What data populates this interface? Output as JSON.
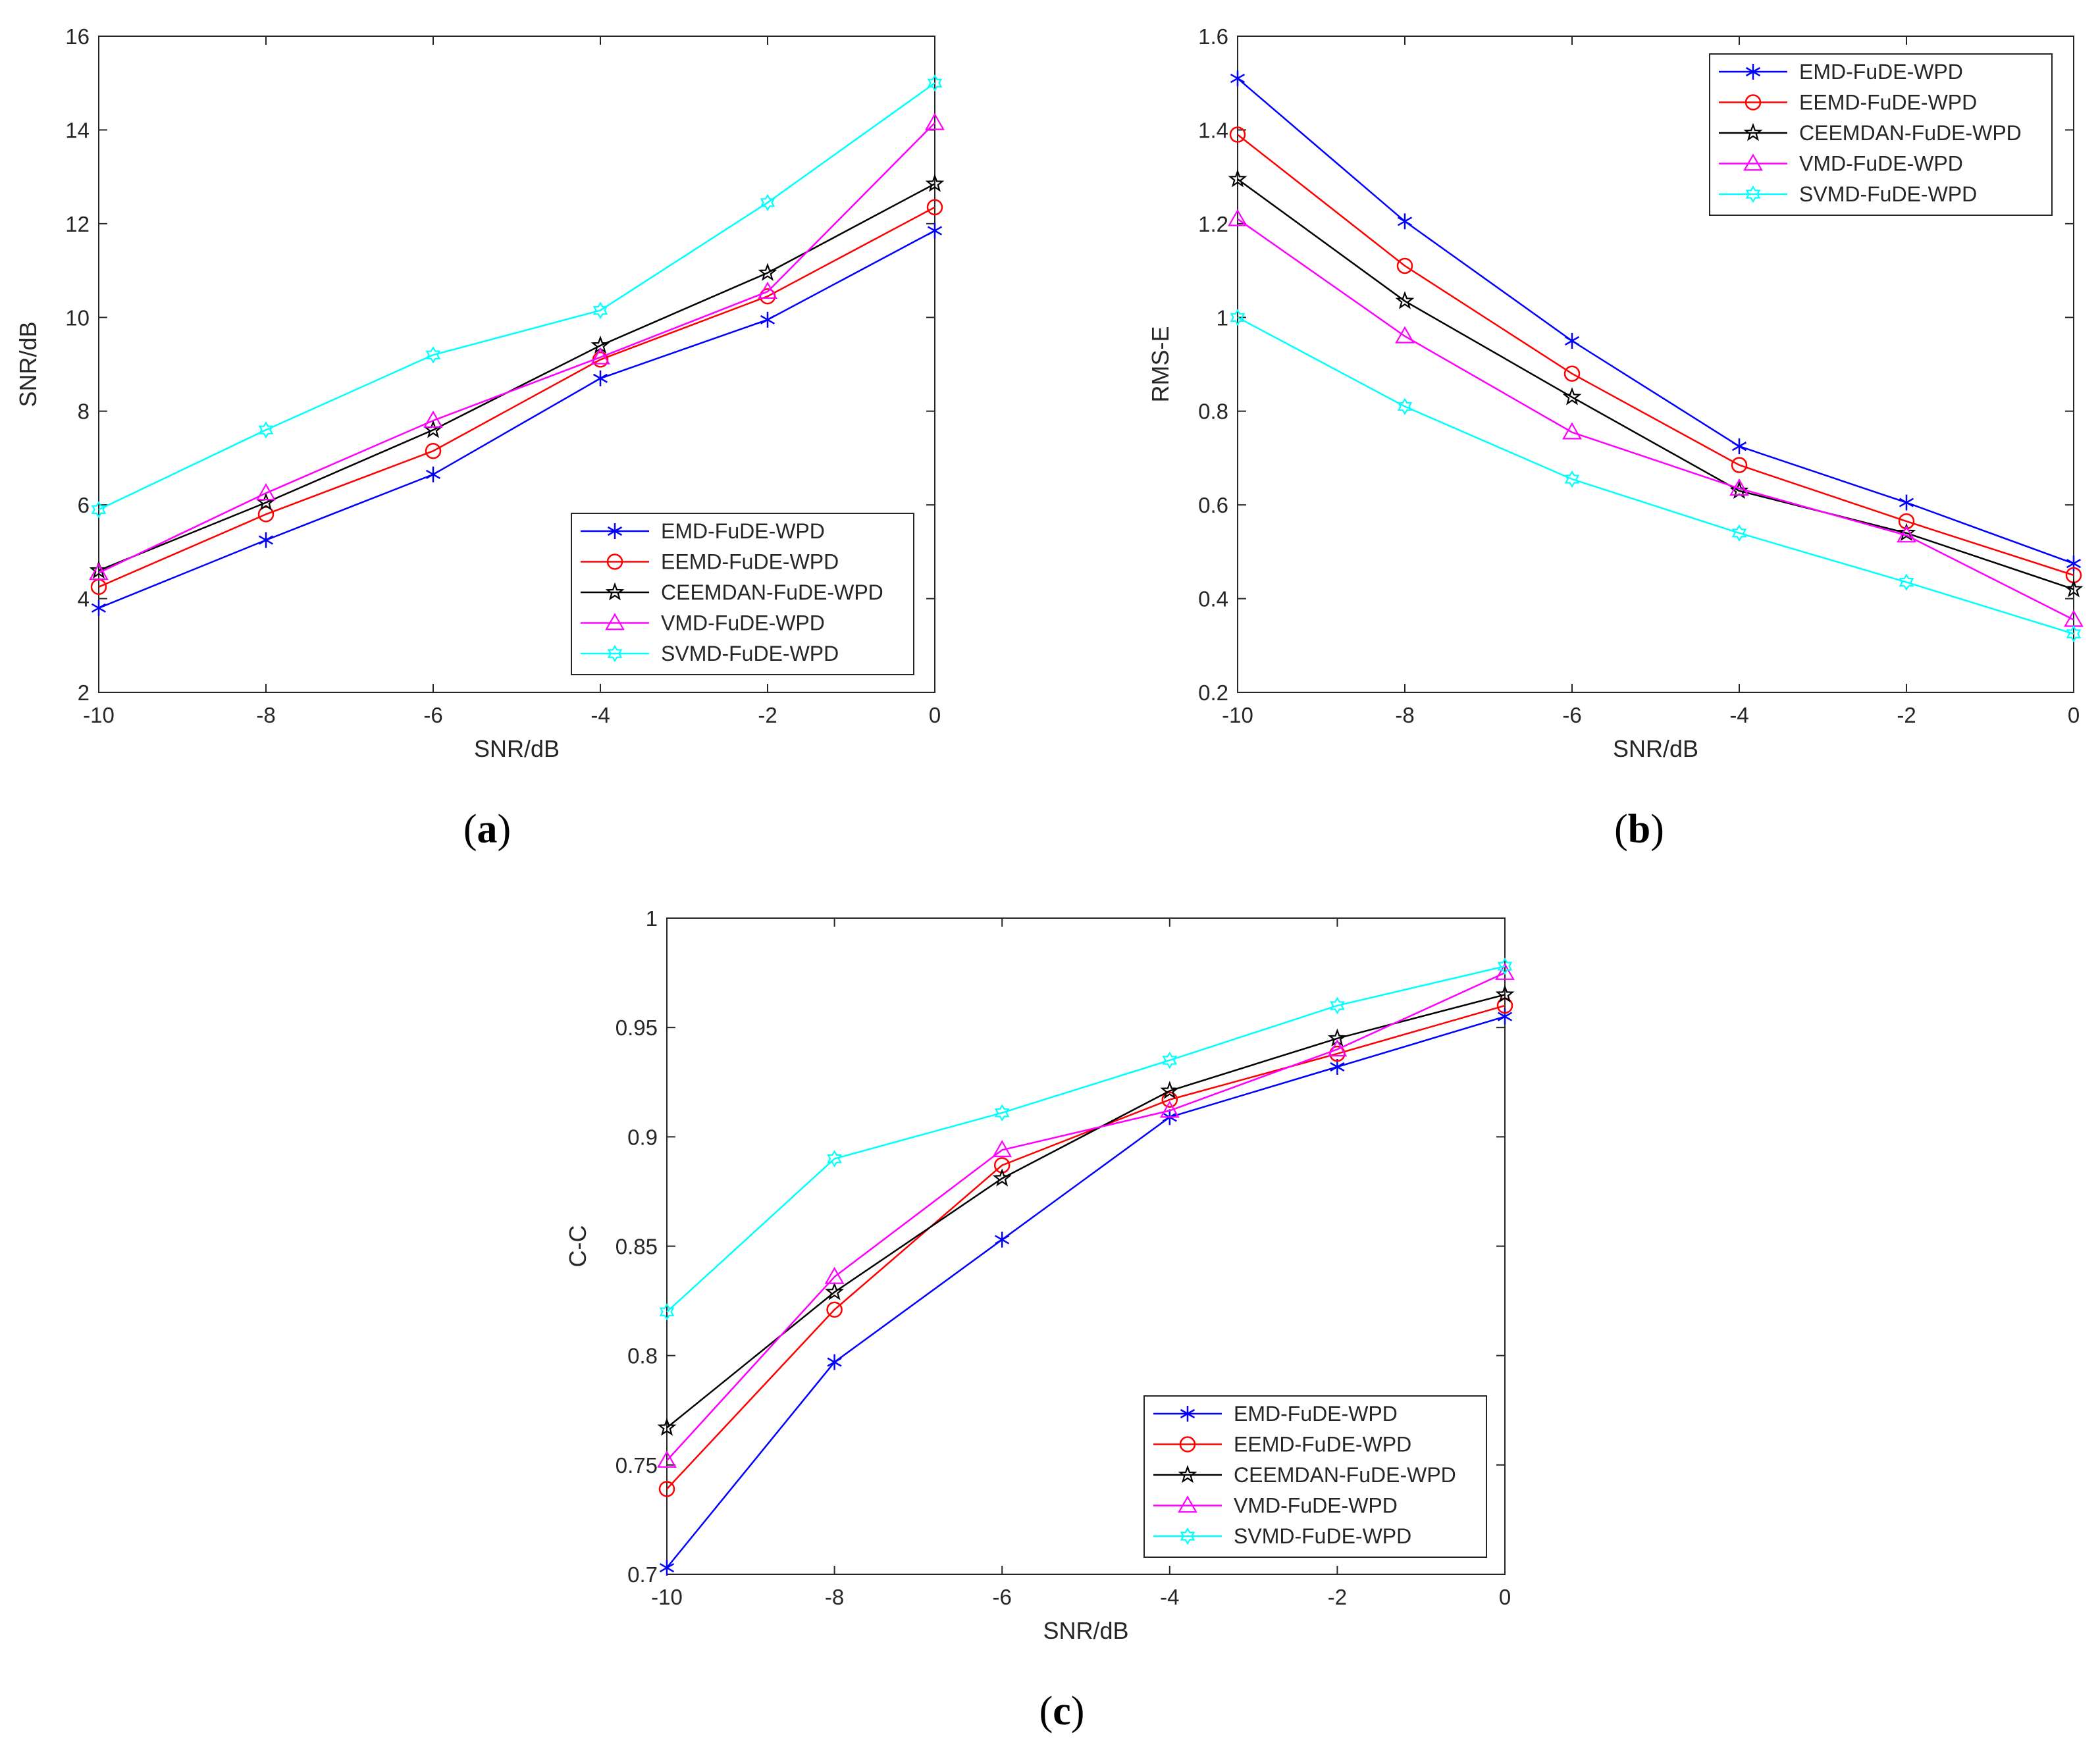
{
  "figure": {
    "series_colors": {
      "EMD-FuDE-WPD": "#0000FF",
      "EEMD-FuDE-WPD": "#FF0000",
      "CEEMDAN-FuDE-WPD": "#000000",
      "VMD-FuDE-WPD": "#FF00FF",
      "SVMD-FuDE-WPD": "#00FFFF"
    },
    "series_markers": {
      "EMD-FuDE-WPD": "asterisk",
      "EEMD-FuDE-WPD": "circle",
      "CEEMDAN-FuDE-WPD": "pentagram",
      "VMD-FuDE-WPD": "triangle",
      "SVMD-FuDE-WPD": "hexagram"
    }
  },
  "chart_data": [
    {
      "id": "a",
      "caption_label": "a",
      "type": "line",
      "title": "",
      "xlabel": "SNR/dB",
      "ylabel": "SNR/dB",
      "x": [
        -10,
        -8,
        -6,
        -4,
        -2,
        0
      ],
      "xlim": [
        -10,
        0
      ],
      "ylim": [
        2,
        16
      ],
      "xticks": [
        -10,
        -8,
        -6,
        -4,
        -2,
        0
      ],
      "xtick_labels": [
        "-10",
        "-8",
        "-6",
        "-4",
        "-2",
        "0"
      ],
      "yticks": [
        2,
        4,
        6,
        8,
        10,
        12,
        14,
        16
      ],
      "ytick_labels": [
        "2",
        "4",
        "6",
        "8",
        "10",
        "12",
        "14",
        "16"
      ],
      "grid": false,
      "legend_position": "bottom-right",
      "series": [
        {
          "name": "EMD-FuDE-WPD",
          "values": [
            3.8,
            5.25,
            6.65,
            8.7,
            9.95,
            11.85
          ]
        },
        {
          "name": "EEMD-FuDE-WPD",
          "values": [
            4.25,
            5.8,
            7.15,
            9.1,
            10.45,
            12.35
          ]
        },
        {
          "name": "CEEMDAN-FuDE-WPD",
          "values": [
            4.6,
            6.05,
            7.6,
            9.4,
            10.95,
            12.85
          ]
        },
        {
          "name": "VMD-FuDE-WPD",
          "values": [
            4.55,
            6.25,
            7.8,
            9.15,
            10.55,
            14.15
          ]
        },
        {
          "name": "SVMD-FuDE-WPD",
          "values": [
            5.9,
            7.6,
            9.2,
            10.15,
            12.45,
            15.0
          ]
        }
      ]
    },
    {
      "id": "b",
      "caption_label": "b",
      "type": "line",
      "title": "",
      "xlabel": "SNR/dB",
      "ylabel": "RMS-E",
      "x": [
        -10,
        -8,
        -6,
        -4,
        -2,
        0
      ],
      "xlim": [
        -10,
        0
      ],
      "ylim": [
        0.2,
        1.6
      ],
      "xticks": [
        -10,
        -8,
        -6,
        -4,
        -2,
        0
      ],
      "xtick_labels": [
        "-10",
        "-8",
        "-6",
        "-4",
        "-2",
        "0"
      ],
      "yticks": [
        0.2,
        0.4,
        0.6,
        0.8,
        1.0,
        1.2,
        1.4,
        1.6
      ],
      "ytick_labels": [
        "0.2",
        "0.4",
        "0.6",
        "0.8",
        "1",
        "1.2",
        "1.4",
        "1.6"
      ],
      "grid": false,
      "legend_position": "top-right",
      "series": [
        {
          "name": "EMD-FuDE-WPD",
          "values": [
            1.51,
            1.205,
            0.95,
            0.725,
            0.605,
            0.475
          ]
        },
        {
          "name": "EEMD-FuDE-WPD",
          "values": [
            1.39,
            1.11,
            0.88,
            0.685,
            0.565,
            0.45
          ]
        },
        {
          "name": "CEEMDAN-FuDE-WPD",
          "values": [
            1.295,
            1.035,
            0.83,
            0.63,
            0.54,
            0.42
          ]
        },
        {
          "name": "VMD-FuDE-WPD",
          "values": [
            1.21,
            0.96,
            0.755,
            0.635,
            0.535,
            0.355
          ]
        },
        {
          "name": "SVMD-FuDE-WPD",
          "values": [
            1.0,
            0.81,
            0.655,
            0.54,
            0.435,
            0.325
          ]
        }
      ]
    },
    {
      "id": "c",
      "caption_label": "c",
      "type": "line",
      "title": "",
      "xlabel": "SNR/dB",
      "ylabel": "C-C",
      "x": [
        -10,
        -8,
        -6,
        -4,
        -2,
        0
      ],
      "xlim": [
        -10,
        0
      ],
      "ylim": [
        0.7,
        1.0
      ],
      "xticks": [
        -10,
        -8,
        -6,
        -4,
        -2,
        0
      ],
      "xtick_labels": [
        "-10",
        "-8",
        "-6",
        "-4",
        "-2",
        "0"
      ],
      "yticks": [
        0.7,
        0.75,
        0.8,
        0.85,
        0.9,
        0.95,
        1.0
      ],
      "ytick_labels": [
        "0.7",
        "0.75",
        "0.8",
        "0.85",
        "0.9",
        "0.95",
        "1"
      ],
      "grid": false,
      "legend_position": "bottom-right",
      "series": [
        {
          "name": "EMD-FuDE-WPD",
          "values": [
            0.703,
            0.797,
            0.853,
            0.909,
            0.932,
            0.955
          ]
        },
        {
          "name": "EEMD-FuDE-WPD",
          "values": [
            0.739,
            0.821,
            0.887,
            0.917,
            0.938,
            0.96
          ]
        },
        {
          "name": "CEEMDAN-FuDE-WPD",
          "values": [
            0.767,
            0.829,
            0.881,
            0.921,
            0.945,
            0.965
          ]
        },
        {
          "name": "VMD-FuDE-WPD",
          "values": [
            0.752,
            0.836,
            0.894,
            0.912,
            0.94,
            0.975
          ]
        },
        {
          "name": "SVMD-FuDE-WPD",
          "values": [
            0.82,
            0.89,
            0.911,
            0.935,
            0.96,
            0.978
          ]
        }
      ]
    }
  ]
}
